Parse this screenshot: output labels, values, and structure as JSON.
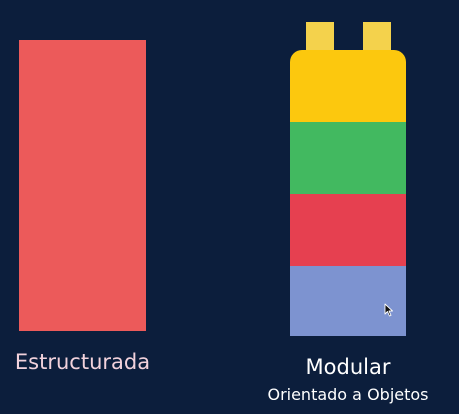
{
  "structured": {
    "label": "Estructurada",
    "color": "#ec5a5a"
  },
  "modular": {
    "label": "Modular",
    "sublabel": "Orientado a Objetos",
    "stud_color": "#f4d24c",
    "segments": [
      {
        "color": "#fcc80e"
      },
      {
        "color": "#42b960"
      },
      {
        "color": "#e64050"
      },
      {
        "color": "#7d93d0"
      }
    ]
  }
}
